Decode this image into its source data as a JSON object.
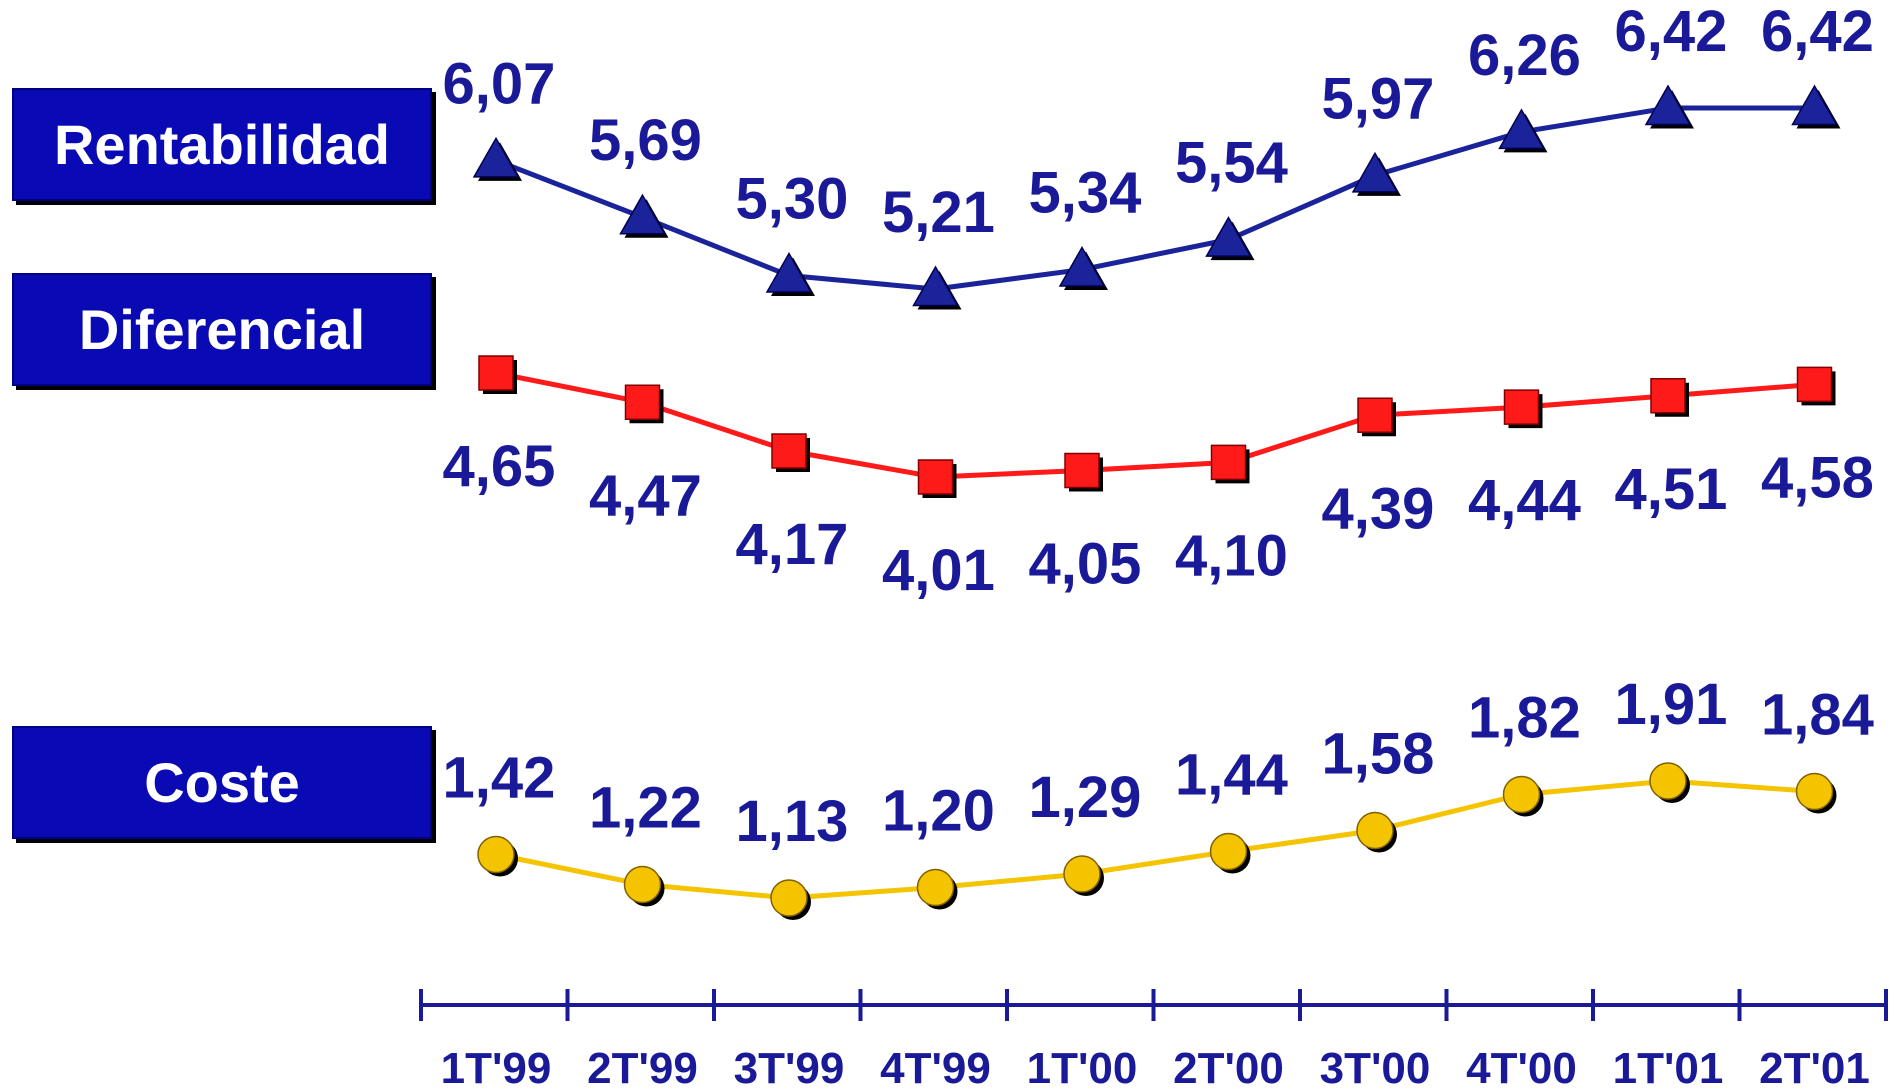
{
  "chart_data": {
    "type": "line",
    "categories": [
      "1T'99",
      "2T'99",
      "3T'99",
      "4T'99",
      "1T'00",
      "2T'00",
      "3T'00",
      "4T'00",
      "1T'01",
      "2T'01"
    ],
    "series": [
      {
        "name": "Rentabilidad",
        "values": [
          6.07,
          5.69,
          5.3,
          5.21,
          5.34,
          5.54,
          5.97,
          6.26,
          6.42,
          6.42
        ],
        "labels": [
          "6,07",
          "5,69",
          "5,30",
          "5,21",
          "5,34",
          "5,54",
          "5,97",
          "6,26",
          "6,42",
          "6,42"
        ],
        "color": "#1a239a",
        "marker": "triangle",
        "marker_color": "#1a239a",
        "label_position": "above"
      },
      {
        "name": "Diferencial",
        "values": [
          4.65,
          4.47,
          4.17,
          4.01,
          4.05,
          4.1,
          4.39,
          4.44,
          4.51,
          4.58
        ],
        "labels": [
          "4,65",
          "4,47",
          "4,17",
          "4,01",
          "4,05",
          "4,10",
          "4,39",
          "4,44",
          "4,51",
          "4,58"
        ],
        "color": "#ff1a1a",
        "marker": "square",
        "marker_color": "#ff1a1a",
        "label_position": "below"
      },
      {
        "name": "Coste",
        "values": [
          1.42,
          1.22,
          1.13,
          1.2,
          1.29,
          1.44,
          1.58,
          1.82,
          1.91,
          1.84
        ],
        "labels": [
          "1,42",
          "1,22",
          "1,13",
          "1,20",
          "1,29",
          "1,44",
          "1,58",
          "1,82",
          "1,91",
          "1,84"
        ],
        "color": "#f5c400",
        "marker": "circle",
        "marker_color": "#f5c400",
        "label_position": "above"
      }
    ],
    "label_color": "#1a1a99",
    "axis_color": "#1a1a99",
    "box_color": "#0a0ab4",
    "grid": false,
    "legend": "left"
  }
}
